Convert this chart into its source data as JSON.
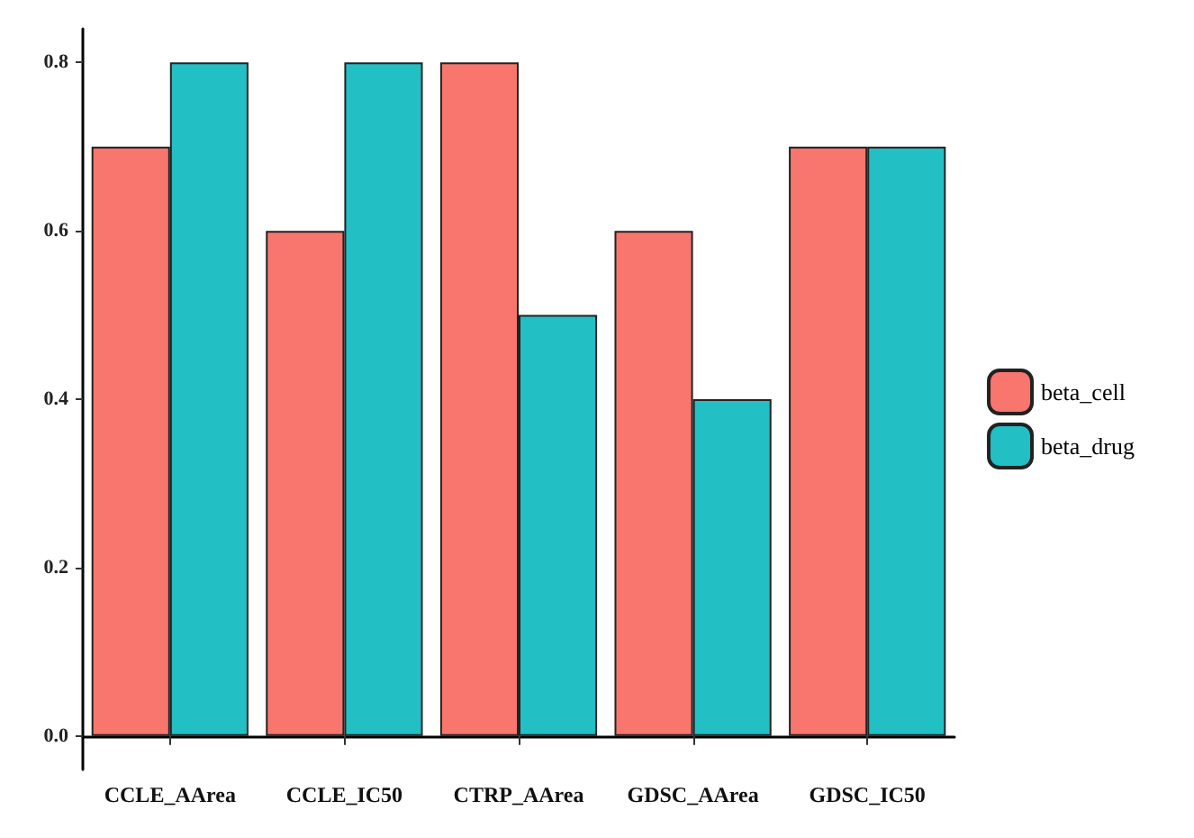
{
  "chart_data": {
    "type": "bar",
    "categories": [
      "CCLE_AArea",
      "CCLE_IC50",
      "CTRP_AArea",
      "GDSC_AArea",
      "GDSC_IC50"
    ],
    "series": [
      {
        "name": "beta_cell",
        "color": "#f8766d",
        "values": [
          0.7,
          0.6,
          0.8,
          0.6,
          0.7
        ]
      },
      {
        "name": "beta_drug",
        "color": "#22bfc4",
        "values": [
          0.8,
          0.8,
          0.5,
          0.4,
          0.7
        ]
      }
    ],
    "ylim": [
      -0.04,
      0.84
    ],
    "yticks": [
      {
        "value": 0,
        "label": "0.0"
      },
      {
        "value": 0.2,
        "label": "0.2"
      },
      {
        "value": 0.4,
        "label": "0.4"
      },
      {
        "value": 0.6,
        "label": "0.6"
      },
      {
        "value": 0.8,
        "label": "0.8"
      }
    ],
    "grid": false,
    "legend": "right"
  }
}
